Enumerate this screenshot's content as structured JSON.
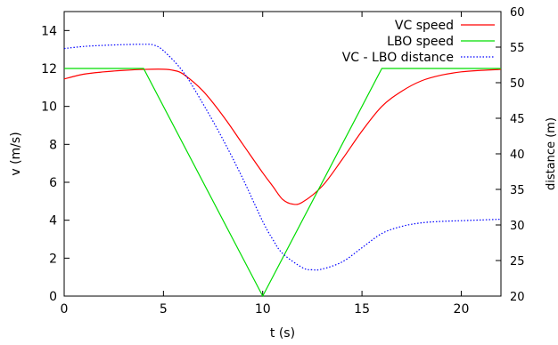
{
  "chart_data": {
    "type": "line",
    "xlabel": "t (s)",
    "ylabel": "v (m/s)",
    "y2label": "distance (m)",
    "xlim": [
      0,
      22
    ],
    "ylim": [
      0,
      15
    ],
    "y2lim": [
      20,
      60
    ],
    "xticks": [
      0,
      5,
      10,
      15,
      20
    ],
    "yticks": [
      0,
      2,
      4,
      6,
      8,
      10,
      12,
      14
    ],
    "y2ticks": [
      20,
      25,
      30,
      35,
      40,
      45,
      50,
      55,
      60
    ],
    "grid": false,
    "legend_position": "top-right",
    "series": [
      {
        "name": "VC speed",
        "axis": "left",
        "color": "#ff0000",
        "dash": "solid",
        "x": [
          0,
          1,
          2,
          3,
          4,
          5,
          5.5,
          6,
          7,
          8,
          9,
          10,
          10.5,
          11,
          11.5,
          12,
          13,
          14,
          15,
          16,
          17,
          18,
          19,
          20,
          21,
          22
        ],
        "y": [
          11.45,
          11.7,
          11.82,
          11.9,
          11.95,
          11.96,
          11.9,
          11.7,
          10.8,
          9.5,
          8.0,
          6.5,
          5.8,
          5.1,
          4.85,
          4.95,
          5.8,
          7.2,
          8.7,
          10.0,
          10.8,
          11.35,
          11.65,
          11.82,
          11.9,
          11.95
        ]
      },
      {
        "name": "LBO speed",
        "axis": "left",
        "color": "#00dd00",
        "dash": "solid",
        "x": [
          0,
          4,
          10,
          16,
          22
        ],
        "y": [
          12,
          12,
          0,
          12,
          12
        ]
      },
      {
        "name": "VC - LBO distance",
        "axis": "right",
        "color": "#0000ff",
        "dash": "dotted",
        "x": [
          0,
          1,
          2,
          3,
          4,
          4.5,
          5,
          6,
          7,
          8,
          9,
          10,
          10.5,
          11,
          12,
          12.5,
          13,
          14,
          15,
          16,
          17,
          18,
          19,
          20,
          21,
          22
        ],
        "y": [
          54.8,
          55.1,
          55.25,
          55.35,
          55.4,
          55.3,
          54.5,
          51.5,
          47.0,
          42.0,
          36.5,
          30.5,
          28.0,
          26.0,
          24.0,
          23.7,
          23.8,
          24.8,
          26.8,
          28.8,
          29.8,
          30.3,
          30.5,
          30.6,
          30.7,
          30.8
        ]
      }
    ]
  }
}
